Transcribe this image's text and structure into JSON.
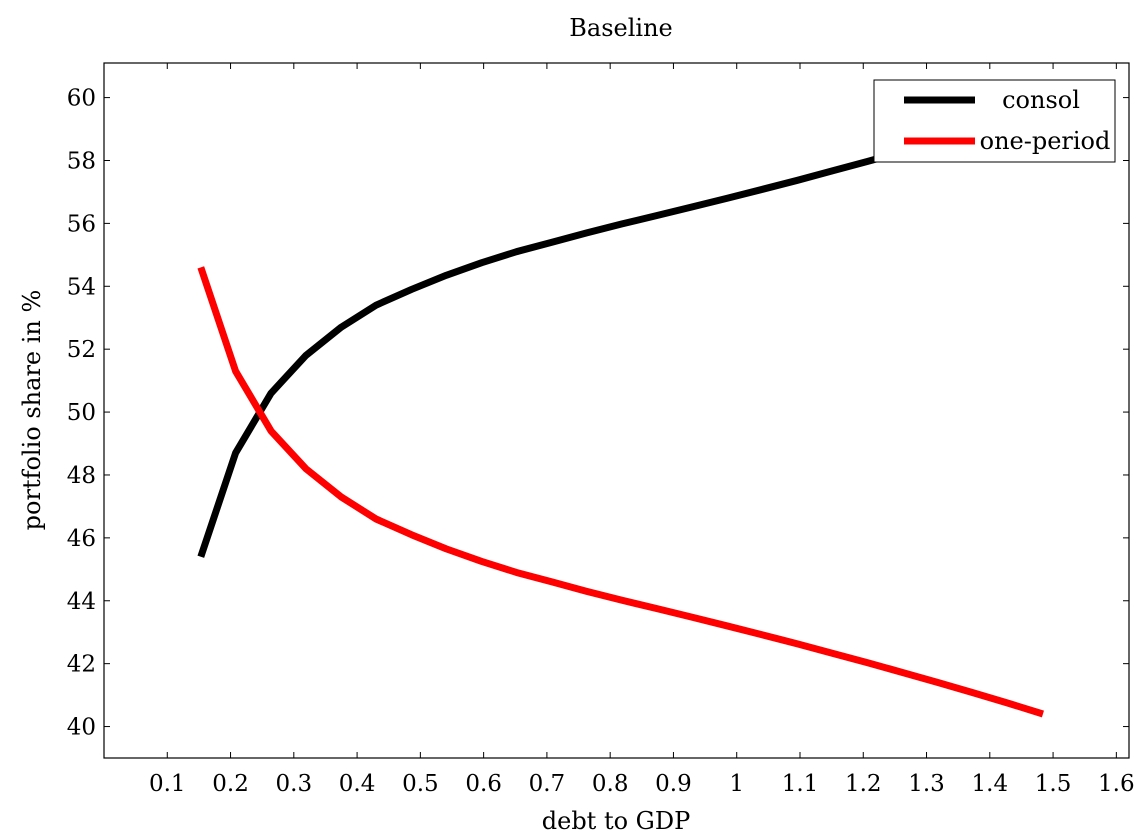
{
  "chart_data": {
    "type": "line",
    "title": "Baseline",
    "xlabel": "debt to GDP",
    "ylabel": "portfolio share in %",
    "xlim": [
      0.0,
      1.62
    ],
    "ylim": [
      39.0,
      61.1
    ],
    "x_ticks": [
      0.1,
      0.2,
      0.3,
      0.4,
      0.5,
      0.6,
      0.7,
      0.8,
      0.9,
      1.0,
      1.1,
      1.2,
      1.3,
      1.4,
      1.5,
      1.6
    ],
    "x_tick_labels": [
      "0.1",
      "0.2",
      "0.3",
      "0.4",
      "0.5",
      "0.6",
      "0.7",
      "0.8",
      "0.9",
      "1",
      "1.1",
      "1.2",
      "1.3",
      "1.4",
      "1.5",
      "1.6"
    ],
    "y_ticks": [
      40,
      42,
      44,
      46,
      48,
      50,
      52,
      54,
      56,
      58,
      60
    ],
    "y_tick_labels": [
      "40",
      "42",
      "44",
      "46",
      "48",
      "50",
      "52",
      "54",
      "56",
      "58",
      "60"
    ],
    "grid": false,
    "legend_position": "top-right",
    "x": [
      0.153,
      0.208,
      0.264,
      0.319,
      0.375,
      0.43,
      0.486,
      0.541,
      0.597,
      0.652,
      0.708,
      0.763,
      0.818,
      0.874,
      0.929,
      0.985,
      1.04,
      1.096,
      1.151,
      1.207,
      1.262,
      1.318,
      1.373,
      1.428,
      1.484
    ],
    "series": [
      {
        "name": "consol",
        "color": "#000000",
        "values": [
          45.4,
          48.7,
          50.6,
          51.8,
          52.7,
          53.4,
          53.9,
          54.35,
          54.75,
          55.1,
          55.4,
          55.7,
          55.98,
          56.25,
          56.52,
          56.8,
          57.08,
          57.37,
          57.67,
          57.97,
          58.28,
          58.6,
          58.92,
          59.25,
          59.6
        ]
      },
      {
        "name": "one-period",
        "color": "#ff0000",
        "values": [
          54.6,
          51.3,
          49.4,
          48.2,
          47.3,
          46.6,
          46.1,
          45.65,
          45.25,
          44.9,
          44.6,
          44.3,
          44.02,
          43.75,
          43.48,
          43.2,
          42.92,
          42.63,
          42.33,
          42.03,
          41.72,
          41.4,
          41.08,
          40.75,
          40.4
        ]
      }
    ]
  }
}
